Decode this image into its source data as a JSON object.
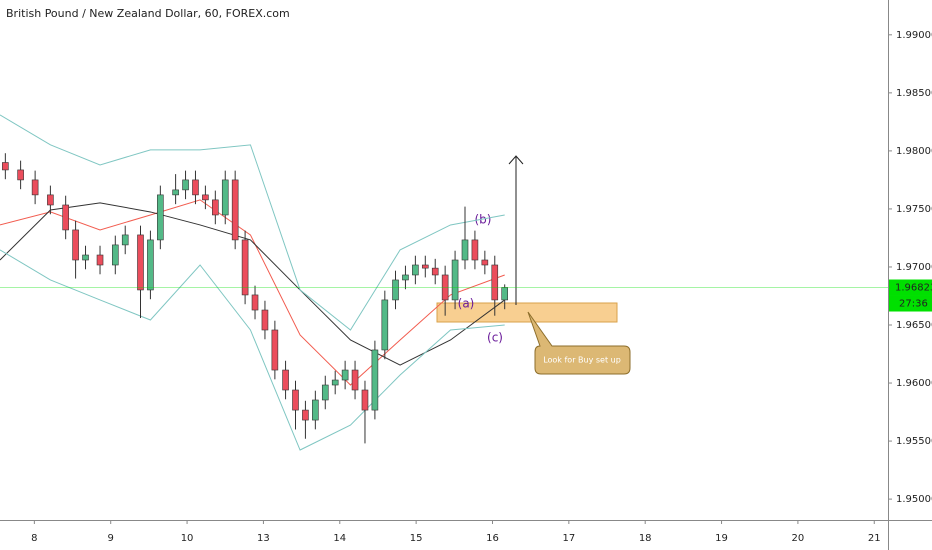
{
  "chart_data": {
    "type": "candlestick",
    "title": "British Pound / New Zealand Dollar, 60, FOREX.com",
    "x": [
      -0.38,
      -0.18,
      0.01,
      0.21,
      0.41,
      0.54,
      0.67,
      0.86,
      1.06,
      1.19,
      1.39,
      1.52,
      1.65,
      1.85,
      1.98,
      2.11,
      2.24,
      2.37,
      2.5,
      2.63,
      2.76,
      2.89,
      3.02,
      3.15,
      3.29,
      3.42,
      3.55,
      3.68,
      3.81,
      3.94,
      4.07,
      4.2,
      4.33,
      4.46,
      4.59,
      4.73,
      4.86,
      4.99,
      5.12,
      5.25,
      5.38,
      5.51,
      5.64,
      5.77,
      5.9,
      6.03,
      6.16
    ],
    "open": [
      1.979,
      1.97836,
      1.9775,
      1.97621,
      1.97534,
      1.97319,
      1.9706,
      1.97103,
      1.97017,
      1.9719,
      1.97276,
      1.96802,
      1.97233,
      1.97621,
      1.97664,
      1.9775,
      1.97621,
      1.97578,
      1.97448,
      1.9775,
      1.97233,
      1.96759,
      1.96629,
      1.96457,
      1.96112,
      1.9594,
      1.95767,
      1.95681,
      1.95854,
      1.95983,
      1.96026,
      1.96112,
      1.9594,
      1.95767,
      1.96285,
      1.96716,
      1.96888,
      1.96931,
      1.97017,
      1.9699,
      1.96931,
      1.96716,
      1.9706,
      1.97233,
      1.9706,
      1.97017,
      1.96716
    ],
    "high": [
      1.9798,
      1.97916,
      1.9783,
      1.97701,
      1.97614,
      1.97399,
      1.97183,
      1.97183,
      1.9727,
      1.97356,
      1.97356,
      1.97313,
      1.97701,
      1.978,
      1.9783,
      1.9783,
      1.97701,
      1.97658,
      1.9783,
      1.9783,
      1.97313,
      1.96839,
      1.96709,
      1.96537,
      1.96192,
      1.9602,
      1.95847,
      1.95934,
      1.96063,
      1.96106,
      1.96192,
      1.96192,
      1.9602,
      1.96365,
      1.96796,
      1.96968,
      1.97011,
      1.97097,
      1.97097,
      1.9707,
      1.97011,
      1.9714,
      1.9752,
      1.97313,
      1.9714,
      1.97097,
      1.9685
    ],
    "low": [
      1.97756,
      1.9767,
      1.97541,
      1.97454,
      1.97239,
      1.969,
      1.9698,
      1.96937,
      1.96937,
      1.9711,
      1.9656,
      1.96722,
      1.97153,
      1.97541,
      1.97584,
      1.97541,
      1.97498,
      1.97368,
      1.97368,
      1.97153,
      1.96679,
      1.96549,
      1.96377,
      1.96032,
      1.9586,
      1.956,
      1.9552,
      1.95601,
      1.95774,
      1.95903,
      1.95946,
      1.9586,
      1.9548,
      1.95687,
      1.96205,
      1.96636,
      1.96808,
      1.96851,
      1.9691,
      1.96851,
      1.9658,
      1.96636,
      1.9698,
      1.9698,
      1.96937,
      1.9658,
      1.96636
    ],
    "close": [
      1.97836,
      1.9775,
      1.97621,
      1.97534,
      1.97319,
      1.9706,
      1.97103,
      1.97017,
      1.9719,
      1.97276,
      1.96802,
      1.97233,
      1.97621,
      1.97664,
      1.9775,
      1.97621,
      1.97578,
      1.97448,
      1.9775,
      1.97233,
      1.96759,
      1.96629,
      1.96457,
      1.96112,
      1.9594,
      1.95767,
      1.95681,
      1.95854,
      1.95983,
      1.96026,
      1.96112,
      1.9594,
      1.95767,
      1.96285,
      1.96716,
      1.96888,
      1.96931,
      1.97017,
      1.9699,
      1.96931,
      1.96716,
      1.9706,
      1.97233,
      1.9706,
      1.97017,
      1.96716,
      1.96823
    ],
    "up_color": "#53b987",
    "down_color": "#eb4d5c",
    "indicator_x": [
      -0.45,
      0.21,
      0.86,
      1.52,
      2.17,
      2.83,
      3.48,
      4.14,
      4.79,
      5.45,
      6.16
    ],
    "lines": [
      {
        "color": "#f25c4f",
        "values": [
          1.97362,
          1.97474,
          1.97319,
          1.97448,
          1.97578,
          1.97276,
          1.96414,
          1.95983,
          1.96371,
          1.96759,
          1.96931
        ]
      },
      {
        "color": "#333333",
        "values": [
          1.9706,
          1.97491,
          1.97552,
          1.97474,
          1.97362,
          1.97233,
          1.96802,
          1.96371,
          1.96155,
          1.96371,
          1.96716
        ]
      },
      {
        "color": "#7fc6c2",
        "values": [
          1.9831,
          1.98052,
          1.97879,
          1.98009,
          1.98009,
          1.98052,
          1.96802,
          1.96457,
          1.97147,
          1.97362,
          1.97448
        ]
      },
      {
        "color": "#7fc6c2",
        "values": [
          1.97147,
          1.96888,
          1.96716,
          1.96543,
          1.97017,
          1.96457,
          1.95423,
          1.95638,
          1.96069,
          1.96457,
          1.965
        ]
      }
    ],
    "xlim": [
      -0.45,
      11.18
    ],
    "xticks": [
      {
        "value": 0,
        "label": "8"
      },
      {
        "value": 1,
        "label": "9"
      },
      {
        "value": 2,
        "label": "10"
      },
      {
        "value": 3,
        "label": "13"
      },
      {
        "value": 4,
        "label": "14"
      },
      {
        "value": 5,
        "label": "15"
      },
      {
        "value": 6,
        "label": "16"
      },
      {
        "value": 7,
        "label": "17"
      },
      {
        "value": 8,
        "label": "18"
      },
      {
        "value": 9,
        "label": "19"
      },
      {
        "value": 10,
        "label": "20"
      },
      {
        "value": 11,
        "label": "21"
      }
    ],
    "ylim": [
      1.9482,
      1.993
    ],
    "yticks": [
      {
        "value": 1.95,
        "label": "1.95000"
      },
      {
        "value": 1.955,
        "label": "1.95500"
      },
      {
        "value": 1.96,
        "label": "1.96000"
      },
      {
        "value": 1.965,
        "label": "1.96500"
      },
      {
        "value": 1.97,
        "label": "1.97000"
      },
      {
        "value": 1.975,
        "label": "1.97500"
      },
      {
        "value": 1.98,
        "label": "1.98000"
      },
      {
        "value": 1.985,
        "label": "1.98500"
      },
      {
        "value": 1.99,
        "label": "1.99000"
      }
    ],
    "last_price": 1.96823,
    "last_price_color": "#00e000",
    "countdown": "27:36",
    "annotations": [
      "(a)",
      "(b)",
      "(c)",
      "Look for Buy set up"
    ]
  }
}
